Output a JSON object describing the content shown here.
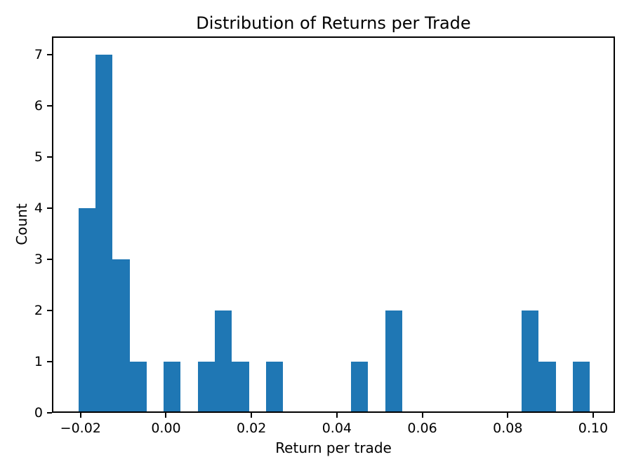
{
  "chart_data": {
    "type": "bar",
    "subtype": "histogram",
    "title": "Distribution of Returns per Trade",
    "xlabel": "Return per trade",
    "ylabel": "Count",
    "bar_color": "#1f77b4",
    "axis_color": "#000000",
    "background_color": "#ffffff",
    "grid": false,
    "legend": null,
    "xlim": [
      -0.0267,
      0.1051
    ],
    "ylim": [
      0,
      7.35
    ],
    "bin_edges": [
      -0.0205,
      -0.01651,
      -0.01252,
      -0.00853,
      -0.00454,
      -0.00055,
      0.00344,
      0.00743,
      0.01142,
      0.01541,
      0.0194,
      0.02339,
      0.02738,
      0.03137,
      0.03536,
      0.03935,
      0.04334,
      0.04733,
      0.05132,
      0.05531,
      0.0593,
      0.06329,
      0.06728,
      0.07127,
      0.07526,
      0.07925,
      0.08324,
      0.08723,
      0.09122,
      0.09521,
      0.0992
    ],
    "counts": [
      4,
      7,
      3,
      1,
      0,
      1,
      0,
      1,
      2,
      1,
      0,
      1,
      0,
      0,
      0,
      0,
      1,
      0,
      2,
      0,
      0,
      0,
      0,
      0,
      0,
      0,
      2,
      1,
      0,
      1
    ],
    "total_trades": 28,
    "xticks": [
      {
        "value": -0.02,
        "label": "−0.02"
      },
      {
        "value": 0.0,
        "label": "0.00"
      },
      {
        "value": 0.02,
        "label": "0.02"
      },
      {
        "value": 0.04,
        "label": "0.04"
      },
      {
        "value": 0.06,
        "label": "0.06"
      },
      {
        "value": 0.08,
        "label": "0.08"
      },
      {
        "value": 0.1,
        "label": "0.10"
      }
    ],
    "yticks": [
      {
        "value": 0,
        "label": "0"
      },
      {
        "value": 1,
        "label": "1"
      },
      {
        "value": 2,
        "label": "2"
      },
      {
        "value": 3,
        "label": "3"
      },
      {
        "value": 4,
        "label": "4"
      },
      {
        "value": 5,
        "label": "5"
      },
      {
        "value": 6,
        "label": "6"
      },
      {
        "value": 7,
        "label": "7"
      }
    ]
  }
}
